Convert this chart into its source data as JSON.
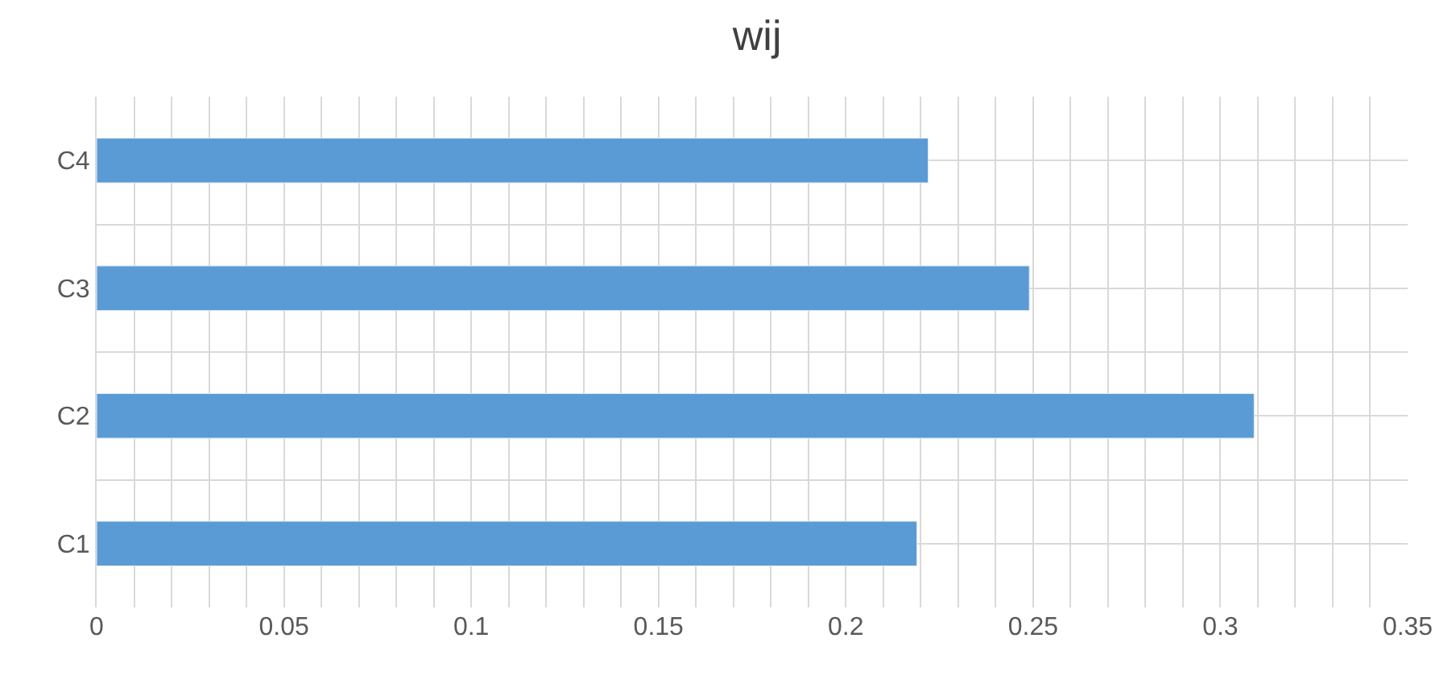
{
  "chart_data": {
    "type": "bar",
    "title": "wij",
    "orientation": "horizontal",
    "categories": [
      "C4",
      "C3",
      "C2",
      "C1"
    ],
    "values": [
      0.222,
      0.249,
      0.309,
      0.219
    ],
    "color": "#5b9bd5",
    "xlim": [
      0,
      0.35
    ],
    "xticks": [
      0,
      0.05,
      0.1,
      0.15,
      0.2,
      0.25,
      0.3,
      0.35
    ],
    "grid": true
  }
}
